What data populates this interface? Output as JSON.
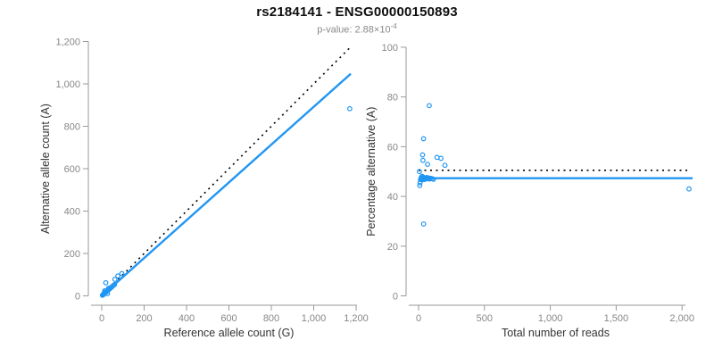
{
  "header": {
    "title": "rs2184141 - ENSG00000150893",
    "subtitle_prefix": "p-value: 2.88×10",
    "subtitle_exponent": "-4"
  },
  "style": {
    "point_color": "#2196f3",
    "fitted_line_color": "#2196f3",
    "expected_line_color": "#000000",
    "axis_color": "#9a9a9a",
    "tick_label_color": "#878787",
    "axis_title_color": "#333333"
  },
  "chart_data": [
    {
      "type": "scatter",
      "name": "allele-counts-plot",
      "xlabel": "Reference allele count (G)",
      "ylabel": "Alternative allele count (A)",
      "xlim": [
        0,
        1200
      ],
      "ylim": [
        0,
        1200
      ],
      "xticks": [
        0,
        200,
        400,
        600,
        800,
        1000,
        1200
      ],
      "yticks": [
        0,
        200,
        400,
        600,
        800,
        1000,
        1200
      ],
      "grid": false,
      "legend": "none",
      "points": [
        [
          3,
          3
        ],
        [
          5,
          4
        ],
        [
          6,
          5
        ],
        [
          8,
          7
        ],
        [
          9,
          8
        ],
        [
          10,
          9
        ],
        [
          12,
          11
        ],
        [
          14,
          13
        ],
        [
          16,
          14
        ],
        [
          18,
          16
        ],
        [
          20,
          18
        ],
        [
          22,
          20
        ],
        [
          25,
          22
        ],
        [
          28,
          25
        ],
        [
          30,
          27
        ],
        [
          33,
          30
        ],
        [
          36,
          32
        ],
        [
          40,
          36
        ],
        [
          44,
          39
        ],
        [
          48,
          43
        ],
        [
          55,
          49
        ],
        [
          60,
          53
        ],
        [
          19,
          62
        ],
        [
          14,
          24
        ],
        [
          13,
          17
        ],
        [
          15,
          18
        ],
        [
          62,
          78
        ],
        [
          76,
          94
        ],
        [
          32,
          36
        ],
        [
          95,
          105
        ],
        [
          27,
          11
        ],
        [
          1170,
          883
        ]
      ],
      "lines": [
        {
          "name": "expected-50pct",
          "style": "dotted",
          "color": "#000000",
          "from": [
            0,
            0
          ],
          "to": [
            1168,
            1168
          ]
        },
        {
          "name": "fitted-ratio",
          "style": "solid",
          "color": "#2196f3",
          "from": [
            0,
            0
          ],
          "to": [
            1175,
            1048
          ]
        }
      ]
    },
    {
      "type": "scatter",
      "name": "percentage-vs-coverage-plot",
      "xlabel": "Total number of reads",
      "ylabel": "Percentage alternative (A)",
      "xlim": [
        0,
        2080
      ],
      "ylim": [
        0,
        100
      ],
      "xticks": [
        0,
        500,
        1000,
        1500,
        2000
      ],
      "yticks": [
        0,
        20,
        40,
        60,
        80,
        100
      ],
      "grid": false,
      "legend": "none",
      "points": [
        [
          6,
          50
        ],
        [
          9,
          44.4
        ],
        [
          11,
          45.5
        ],
        [
          15,
          46.7
        ],
        [
          17,
          47.1
        ],
        [
          19,
          47.4
        ],
        [
          23,
          47.8
        ],
        [
          27,
          48.1
        ],
        [
          30,
          46.7
        ],
        [
          34,
          47.1
        ],
        [
          38,
          47.4
        ],
        [
          42,
          47.6
        ],
        [
          47,
          46.8
        ],
        [
          53,
          47.2
        ],
        [
          57,
          47.4
        ],
        [
          63,
          47.6
        ],
        [
          68,
          47.1
        ],
        [
          76,
          47.4
        ],
        [
          83,
          47.0
        ],
        [
          91,
          47.3
        ],
        [
          104,
          47.1
        ],
        [
          113,
          46.9
        ],
        [
          81,
          76.5
        ],
        [
          38,
          63.2
        ],
        [
          30,
          56.7
        ],
        [
          33,
          54.5
        ],
        [
          140,
          55.7
        ],
        [
          170,
          55.3
        ],
        [
          68,
          52.9
        ],
        [
          200,
          52.5
        ],
        [
          38,
          28.9
        ],
        [
          2053,
          43
        ]
      ],
      "lines": [
        {
          "name": "expected-50pct",
          "style": "dotted",
          "color": "#000000",
          "from": [
            0,
            50.5
          ],
          "to": [
            2065,
            50.5
          ]
        },
        {
          "name": "fitted-ratio",
          "style": "solid",
          "color": "#2196f3",
          "from": [
            0,
            47.3
          ],
          "to": [
            2080,
            47.3
          ]
        }
      ]
    }
  ]
}
